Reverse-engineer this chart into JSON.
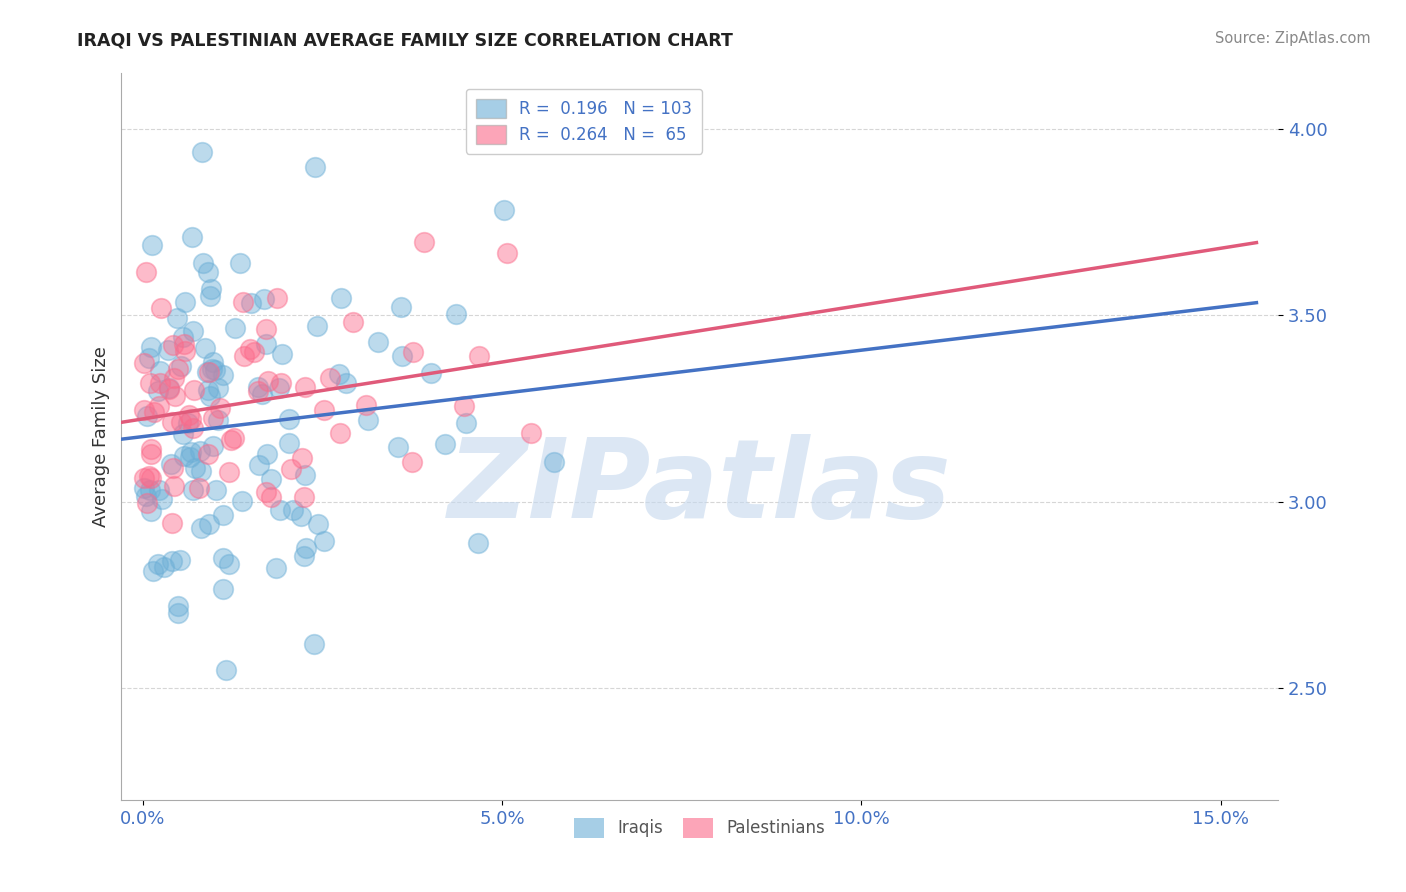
{
  "title": "IRAQI VS PALESTINIAN AVERAGE FAMILY SIZE CORRELATION CHART",
  "source": "Source: ZipAtlas.com",
  "xlabel_ticks": [
    "0.0%",
    "5.0%",
    "10.0%",
    "15.0%"
  ],
  "ylabel": "Average Family Size",
  "ylim": [
    2.2,
    4.15
  ],
  "xlim": [
    -0.3,
    15.8
  ],
  "yticks": [
    2.5,
    3.0,
    3.5,
    4.0
  ],
  "color_iraqi": "#6baed6",
  "color_palestinian": "#fb6a8a",
  "color_line_iraqi": "#4472c4",
  "color_line_palestinian": "#e05a7a",
  "color_axis_ticks": "#4472c4",
  "watermark_color": "#c5d8ee",
  "r_iraqi": 0.196,
  "n_iraqi": 103,
  "r_palest": 0.264,
  "n_palest": 65
}
